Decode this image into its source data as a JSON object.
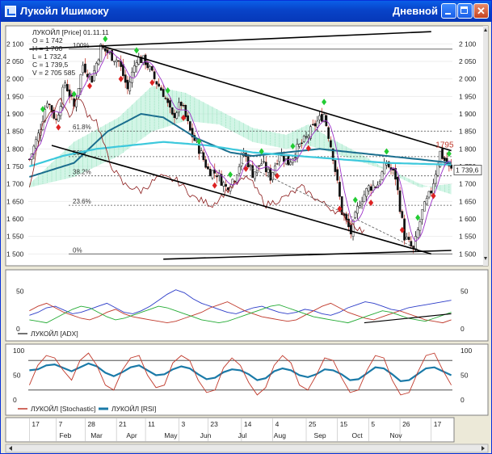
{
  "window": {
    "title": "Лукойл Ишимоку",
    "period": "Дневной",
    "icons": [
      "chart-icon",
      "minimize-icon",
      "maximize-icon",
      "close-icon"
    ]
  },
  "info": {
    "header": "ЛУКОЙЛ [Price] 01.11.11",
    "open": "O = 1 742",
    "high": "H = 1 766",
    "low": "L = 1 732,4",
    "close": "C = 1 739,5",
    "volume": "V = 2 705 585"
  },
  "chart_data": [
    {
      "type": "candlestick",
      "ylim": [
        1480,
        2140
      ],
      "yticks": [
        "2 100",
        "2 050",
        "2 000",
        "1 950",
        "1 900",
        "1 850",
        "1 800",
        "1 750",
        "1 700",
        "1 650",
        "1 600",
        "1 550",
        "1 500"
      ],
      "ytick_values": [
        2100,
        2050,
        2000,
        1950,
        1900,
        1850,
        1800,
        1750,
        1700,
        1650,
        1600,
        1550,
        1500
      ],
      "last_price": "1 739,6",
      "last_value": 1739.6,
      "high_label": "1795",
      "high_value": 1795,
      "fib_levels": [
        {
          "label": "100%",
          "value": 2085
        },
        {
          "label": "61.8%",
          "value": 1851
        },
        {
          "label": "50%",
          "value": 1778
        },
        {
          "label": "38.2%",
          "value": 1723
        },
        {
          "label": "23.6%",
          "value": 1639
        },
        {
          "label": "0%",
          "value": 1500
        }
      ],
      "n_bars": 190,
      "anchors": [
        [
          0,
          1770
        ],
        [
          4,
          1840
        ],
        [
          8,
          1940
        ],
        [
          12,
          1880
        ],
        [
          16,
          1990
        ],
        [
          20,
          1920
        ],
        [
          24,
          2040
        ],
        [
          28,
          2000
        ],
        [
          32,
          2090
        ],
        [
          36,
          2070
        ],
        [
          40,
          2050
        ],
        [
          44,
          1970
        ],
        [
          48,
          2060
        ],
        [
          52,
          2050
        ],
        [
          56,
          2000
        ],
        [
          60,
          1960
        ],
        [
          64,
          1890
        ],
        [
          68,
          1930
        ],
        [
          72,
          1850
        ],
        [
          76,
          1800
        ],
        [
          80,
          1740
        ],
        [
          84,
          1730
        ],
        [
          88,
          1690
        ],
        [
          92,
          1720
        ],
        [
          96,
          1790
        ],
        [
          100,
          1730
        ],
        [
          104,
          1760
        ],
        [
          108,
          1720
        ],
        [
          112,
          1790
        ],
        [
          116,
          1760
        ],
        [
          120,
          1800
        ],
        [
          124,
          1830
        ],
        [
          128,
          1870
        ],
        [
          132,
          1900
        ],
        [
          136,
          1780
        ],
        [
          140,
          1620
        ],
        [
          144,
          1560
        ],
        [
          148,
          1650
        ],
        [
          152,
          1690
        ],
        [
          156,
          1700
        ],
        [
          160,
          1760
        ],
        [
          164,
          1720
        ],
        [
          168,
          1550
        ],
        [
          172,
          1510
        ],
        [
          176,
          1620
        ],
        [
          180,
          1680
        ],
        [
          184,
          1790
        ],
        [
          188,
          1745
        ],
        [
          189,
          1739
        ]
      ],
      "cloud_a": [
        [
          0,
          1700
        ],
        [
          20,
          1820
        ],
        [
          40,
          1890
        ],
        [
          55,
          1980
        ],
        [
          70,
          1960
        ],
        [
          85,
          1910
        ],
        [
          100,
          1860
        ],
        [
          115,
          1840
        ],
        [
          125,
          1870
        ],
        [
          135,
          1830
        ],
        [
          150,
          1780
        ],
        [
          165,
          1720
        ],
        [
          175,
          1690
        ],
        [
          189,
          1700
        ]
      ],
      "cloud_b": [
        [
          0,
          1690
        ],
        [
          20,
          1720
        ],
        [
          40,
          1780
        ],
        [
          55,
          1850
        ],
        [
          70,
          1880
        ],
        [
          85,
          1870
        ],
        [
          100,
          1820
        ],
        [
          115,
          1800
        ],
        [
          125,
          1810
        ],
        [
          135,
          1790
        ],
        [
          150,
          1760
        ],
        [
          165,
          1730
        ],
        [
          175,
          1700
        ],
        [
          189,
          1670
        ]
      ],
      "kijun": [
        [
          0,
          1720
        ],
        [
          20,
          1760
        ],
        [
          35,
          1850
        ],
        [
          50,
          1900
        ],
        [
          60,
          1890
        ],
        [
          75,
          1830
        ],
        [
          90,
          1790
        ],
        [
          100,
          1780
        ],
        [
          115,
          1790
        ],
        [
          130,
          1800
        ],
        [
          145,
          1790
        ],
        [
          160,
          1780
        ],
        [
          175,
          1770
        ],
        [
          189,
          1760
        ]
      ],
      "tenkan": [
        [
          0,
          1750
        ],
        [
          15,
          1780
        ],
        [
          30,
          1800
        ],
        [
          45,
          1810
        ],
        [
          60,
          1820
        ],
        [
          80,
          1810
        ],
        [
          100,
          1790
        ],
        [
          120,
          1780
        ],
        [
          140,
          1770
        ],
        [
          160,
          1760
        ],
        [
          189,
          1755
        ]
      ],
      "chikou": [
        [
          0,
          1690
        ],
        [
          6,
          1880
        ],
        [
          10,
          1900
        ],
        [
          14,
          1950
        ],
        [
          18,
          1890
        ],
        [
          22,
          1950
        ],
        [
          26,
          1900
        ],
        [
          30,
          1880
        ],
        [
          36,
          1760
        ],
        [
          42,
          1700
        ],
        [
          50,
          1680
        ],
        [
          58,
          1720
        ],
        [
          66,
          1710
        ],
        [
          74,
          1660
        ],
        [
          82,
          1640
        ],
        [
          90,
          1690
        ],
        [
          98,
          1720
        ],
        [
          106,
          1640
        ],
        [
          114,
          1660
        ],
        [
          122,
          1690
        ],
        [
          130,
          1650
        ],
        [
          138,
          1620
        ],
        [
          146,
          1580
        ],
        [
          150,
          1560
        ]
      ],
      "channel_upper": [
        [
          32,
          2095
        ],
        [
          189,
          1795
        ]
      ],
      "channel_lower": [
        [
          10,
          1810
        ],
        [
          180,
          1500
        ]
      ],
      "top_line": [
        [
          0,
          2085
        ],
        [
          180,
          2135
        ]
      ],
      "bottom_line": [
        [
          60,
          1485
        ],
        [
          189,
          1510
        ]
      ]
    },
    {
      "type": "line",
      "name": "ЛУКОЙЛ [ADX]",
      "ylim": [
        0,
        70
      ],
      "yticks": [
        "50",
        "0"
      ],
      "ytick_values": [
        50,
        0
      ],
      "series": [
        {
          "values": [
            18,
            22,
            28,
            30,
            25,
            20,
            22,
            26,
            30,
            34,
            28,
            22,
            20,
            24,
            30,
            38,
            46,
            52,
            48,
            40,
            34,
            30,
            26,
            22,
            20,
            24,
            28,
            30,
            26,
            22,
            20,
            22,
            26,
            24,
            20,
            18,
            22,
            28,
            32,
            36,
            34,
            30,
            26,
            24,
            28,
            30,
            32,
            34,
            36,
            38
          ]
        },
        {
          "values": [
            24,
            30,
            34,
            28,
            22,
            18,
            14,
            12,
            16,
            22,
            26,
            20,
            16,
            14,
            12,
            10,
            8,
            10,
            14,
            18,
            22,
            28,
            32,
            36,
            30,
            24,
            20,
            16,
            14,
            12,
            10,
            12,
            18,
            24,
            30,
            34,
            28,
            22,
            18,
            14,
            12,
            16,
            20,
            24,
            20,
            16,
            12,
            10,
            8,
            12
          ]
        },
        {
          "values": [
            12,
            10,
            8,
            14,
            20,
            26,
            30,
            28,
            22,
            16,
            12,
            14,
            18,
            22,
            26,
            30,
            28,
            24,
            20,
            16,
            12,
            10,
            8,
            10,
            14,
            18,
            22,
            26,
            30,
            32,
            28,
            24,
            20,
            16,
            14,
            12,
            10,
            8,
            12,
            16,
            20,
            24,
            22,
            18,
            14,
            12,
            10,
            14,
            18,
            22
          ]
        }
      ],
      "trend_line": [
        [
          150,
          8
        ],
        [
          189,
          20
        ]
      ]
    },
    {
      "type": "line",
      "name": "ЛУКОЙЛ [Stochastic]",
      "name2": "ЛУКОЙЛ [RSI]",
      "ylim": [
        0,
        100
      ],
      "yticks": [
        "100",
        "50",
        "0"
      ],
      "ytick_values": [
        100,
        50,
        0
      ],
      "hlines": [
        80,
        20
      ],
      "stochastic": [
        30,
        70,
        90,
        85,
        60,
        40,
        80,
        95,
        70,
        30,
        20,
        60,
        85,
        90,
        50,
        25,
        30,
        75,
        90,
        80,
        40,
        15,
        20,
        65,
        85,
        70,
        35,
        10,
        25,
        70,
        90,
        75,
        30,
        20,
        50,
        85,
        80,
        45,
        15,
        20,
        60,
        90,
        85,
        40,
        10,
        15,
        55,
        90,
        95,
        60,
        30
      ],
      "rsi": [
        60,
        62,
        70,
        72,
        65,
        58,
        66,
        74,
        68,
        55,
        48,
        56,
        66,
        70,
        60,
        50,
        52,
        62,
        68,
        64,
        52,
        42,
        45,
        56,
        62,
        60,
        52,
        40,
        44,
        58,
        64,
        60,
        50,
        46,
        52,
        62,
        60,
        52,
        40,
        42,
        54,
        66,
        64,
        52,
        38,
        40,
        52,
        64,
        66,
        58,
        50
      ]
    }
  ],
  "xaxis": {
    "labels": [
      {
        "text": "17",
        "bar": 0
      },
      {
        "text": "7",
        "bar": 12
      },
      {
        "text": "28",
        "bar": 25
      },
      {
        "text": "21",
        "bar": 39
      },
      {
        "text": "11",
        "bar": 52
      },
      {
        "text": "3",
        "bar": 67
      },
      {
        "text": "23",
        "bar": 80
      },
      {
        "text": "14",
        "bar": 95
      },
      {
        "text": "4",
        "bar": 109
      },
      {
        "text": "25",
        "bar": 124
      },
      {
        "text": "15",
        "bar": 138
      },
      {
        "text": "5",
        "bar": 152
      },
      {
        "text": "26",
        "bar": 166
      },
      {
        "text": "17",
        "bar": 180
      }
    ],
    "months": [
      {
        "text": "Feb",
        "bar": 12
      },
      {
        "text": "Mar",
        "bar": 26
      },
      {
        "text": "Apr",
        "bar": 42
      },
      {
        "text": "May",
        "bar": 59
      },
      {
        "text": "Jun",
        "bar": 75
      },
      {
        "text": "Jul",
        "bar": 92
      },
      {
        "text": "Aug",
        "bar": 108
      },
      {
        "text": "Sep",
        "bar": 126
      },
      {
        "text": "Oct",
        "bar": 143
      },
      {
        "text": "Nov",
        "bar": 160
      }
    ]
  },
  "colors": {
    "up": "#111111",
    "down": "#c0392b",
    "up_arrow": "#22cc33",
    "down_arrow": "#dd2222",
    "kijun": "#1a6e8e",
    "tenkan": "#3cc8dc",
    "cloud": "#9be8c8",
    "chikou": "#8b1a1a",
    "adx1": "#2b3bc8",
    "adx2": "#c0392b",
    "adx3": "#22aa33",
    "stoch": "#c0392b",
    "rsi": "#1a7aa8"
  }
}
